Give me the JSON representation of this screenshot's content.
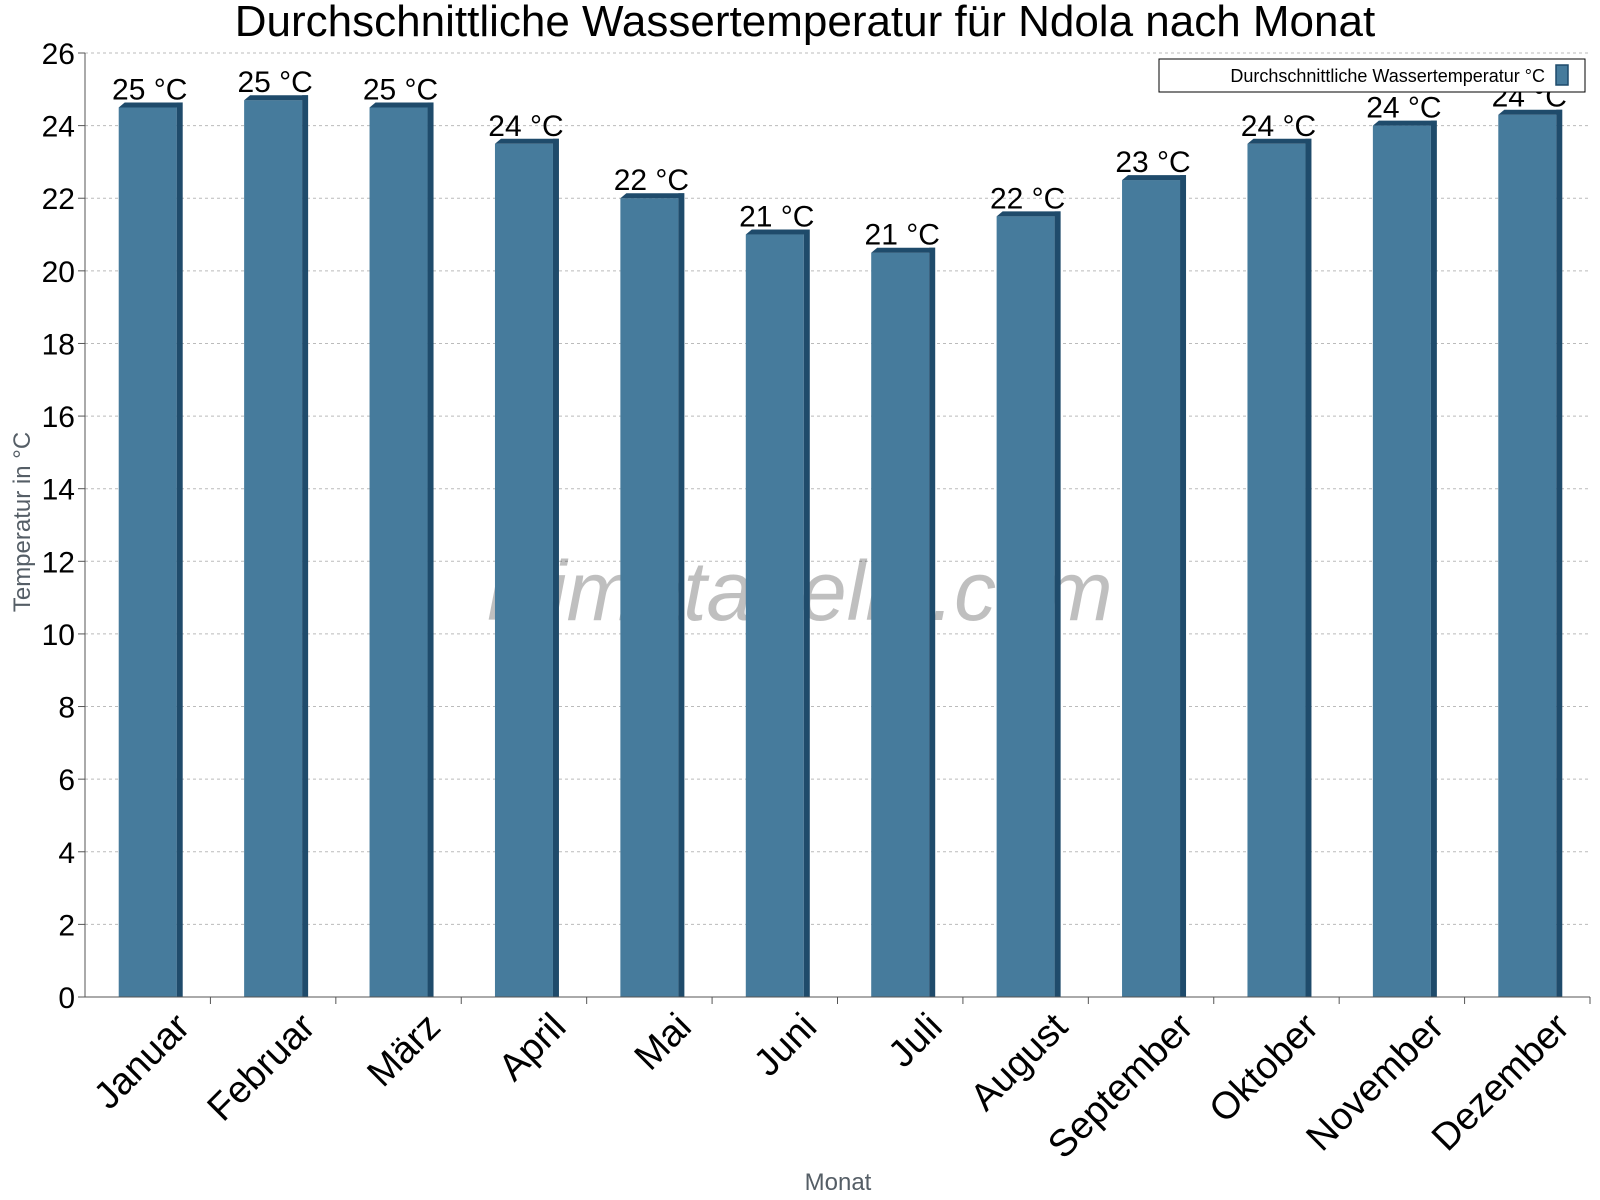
{
  "colors": {
    "bar_face": "#467b9c",
    "bar_side": "#1f4b6b",
    "grid": "#bbbbbb",
    "axis": "#555555"
  },
  "watermark": "klimatabelle.com",
  "chart_data": {
    "type": "bar",
    "title": "Durchschnittliche Wassertemperatur für Ndola nach Monat",
    "xlabel": "Monat",
    "ylabel": "Temperatur in °C",
    "ylim": [
      0,
      26
    ],
    "yticks": [
      0,
      2,
      4,
      6,
      8,
      10,
      12,
      14,
      16,
      18,
      20,
      22,
      24,
      26
    ],
    "grid": true,
    "legend_position": "top-right",
    "categories": [
      "Januar",
      "Februar",
      "März",
      "April",
      "Mai",
      "Juni",
      "Juli",
      "August",
      "September",
      "Oktober",
      "November",
      "Dezember"
    ],
    "series": [
      {
        "name": "Durchschnittliche Wassertemperatur °C",
        "values": [
          24.5,
          24.7,
          24.5,
          23.5,
          22.0,
          21.0,
          20.5,
          21.5,
          22.5,
          23.5,
          24.0,
          24.3
        ],
        "labels": [
          "25 °C",
          "25 °C",
          "25 °C",
          "24 °C",
          "22 °C",
          "21 °C",
          "21 °C",
          "22 °C",
          "23 °C",
          "24 °C",
          "24 °C",
          "24 °C"
        ]
      }
    ]
  }
}
